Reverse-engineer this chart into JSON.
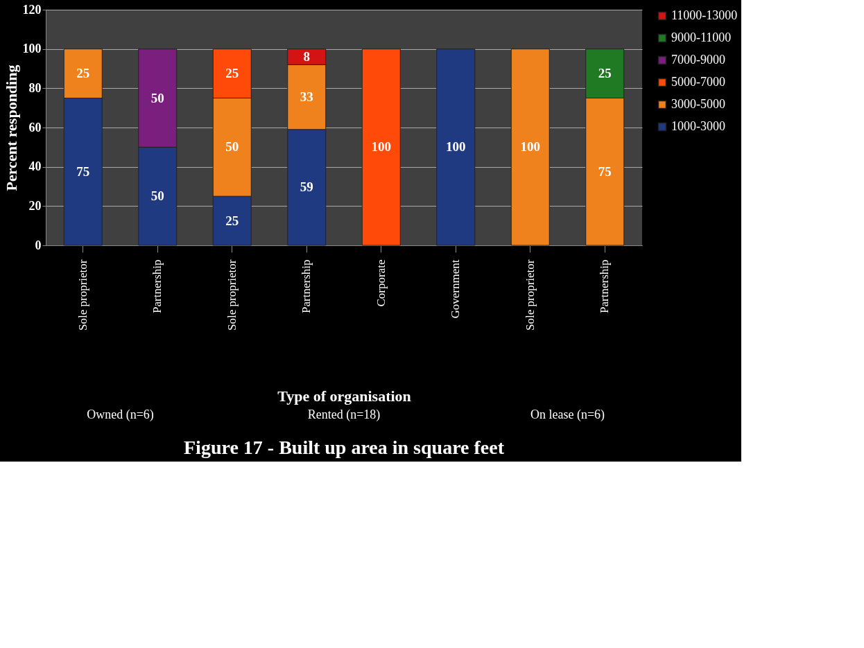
{
  "chart_data": {
    "type": "bar",
    "stacked": true,
    "title": "Figure 17 - Built up area in square feet",
    "xlabel": "Type of organisation",
    "ylabel": "Percent responding",
    "categories": [
      "Sole proprietor",
      "Partnership",
      "Sole proprietor",
      "Partnership",
      "Corporate",
      "Government",
      "Sole proprietor",
      "Partnership"
    ],
    "annotations": [
      "Owned (n=6)",
      "Rented (n=18)",
      "On lease (n=6)"
    ],
    "series": [
      {
        "name": "1000-3000",
        "color": "#1f3a80",
        "values": [
          75,
          50,
          25,
          59,
          null,
          100,
          null,
          null
        ]
      },
      {
        "name": "3000-5000",
        "color": "#f0821e",
        "values": [
          25,
          null,
          50,
          33,
          null,
          null,
          100,
          75
        ]
      },
      {
        "name": "5000-7000",
        "color": "#ff4a0a",
        "values": [
          null,
          null,
          25,
          null,
          100,
          null,
          null,
          null
        ]
      },
      {
        "name": "7000-9000",
        "color": "#7a1f7e",
        "values": [
          null,
          50,
          null,
          null,
          null,
          null,
          null,
          null
        ]
      },
      {
        "name": "9000-11000",
        "color": "#1f7a23",
        "values": [
          null,
          null,
          null,
          null,
          null,
          null,
          null,
          25
        ]
      },
      {
        "name": "11000-13000",
        "color": "#d41414",
        "values": [
          null,
          null,
          null,
          8,
          null,
          null,
          null,
          null
        ]
      }
    ],
    "ylim": [
      0,
      120
    ],
    "yticks": [
      0,
      20,
      40,
      60,
      80,
      100,
      120
    ],
    "grid": "y",
    "legend": "right",
    "data_labels": true
  }
}
